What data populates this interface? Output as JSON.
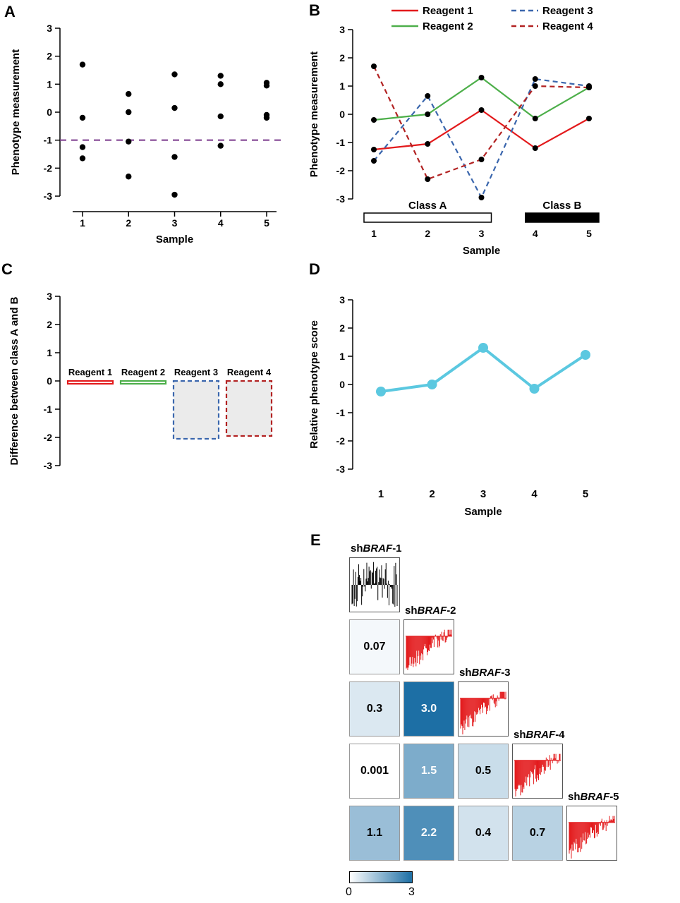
{
  "panels": {
    "a": {
      "letter": "A"
    },
    "b": {
      "letter": "B"
    },
    "c": {
      "letter": "C"
    },
    "d": {
      "letter": "D"
    },
    "e": {
      "letter": "E",
      "colorbar_min": "0",
      "colorbar_max": "3"
    }
  },
  "chart_data": [
    {
      "panel": "A",
      "type": "scatter",
      "xlabel": "Sample",
      "ylabel": "Phenotype measurement",
      "x": [
        1,
        2,
        3,
        4,
        5
      ],
      "points_by_sample": [
        [
          1.7,
          -0.2,
          -1.25,
          -1.65
        ],
        [
          0.65,
          0.0,
          -1.05,
          -2.3
        ],
        [
          1.35,
          0.15,
          -1.6,
          -2.95
        ],
        [
          1.3,
          1.0,
          -0.15,
          -1.2
        ],
        [
          1.05,
          0.95,
          -0.1,
          -0.2
        ]
      ],
      "threshold_line": {
        "y": -1,
        "color": "#7a378b",
        "style": "dashed"
      },
      "ylim": [
        -3,
        3
      ],
      "yticks": [
        -3,
        -2,
        -1,
        0,
        1,
        2,
        3
      ],
      "point_color": "#000000"
    },
    {
      "panel": "B",
      "type": "line",
      "xlabel": "Sample",
      "ylabel": "Phenotype measurement",
      "categories": [
        1,
        2,
        3,
        4,
        5
      ],
      "series": [
        {
          "name": "Reagent 1",
          "color": "#e31a1c",
          "dashed": false,
          "values": [
            -1.25,
            -1.05,
            0.15,
            -1.2,
            -0.15
          ]
        },
        {
          "name": "Reagent 2",
          "color": "#4daf4a",
          "dashed": false,
          "values": [
            -0.2,
            0.0,
            1.3,
            -0.15,
            0.95
          ]
        },
        {
          "name": "Reagent 3",
          "color": "#3a66ad",
          "dashed": true,
          "values": [
            -1.65,
            0.65,
            -2.95,
            1.25,
            1.0
          ]
        },
        {
          "name": "Reagent 4",
          "color": "#b22222",
          "dashed": true,
          "values": [
            1.7,
            -2.3,
            -1.6,
            1.0,
            0.95
          ]
        }
      ],
      "classes": [
        {
          "label": "Class A",
          "samples": [
            1,
            3
          ],
          "fill": "#ffffff"
        },
        {
          "label": "Class B",
          "samples": [
            4,
            5
          ],
          "fill": "#000000"
        }
      ],
      "ylim": [
        -3,
        3
      ],
      "yticks": [
        -3,
        -2,
        -1,
        0,
        1,
        2,
        3
      ],
      "marker_color": "#000000"
    },
    {
      "panel": "C",
      "type": "bar",
      "ylabel": "Difference between class A and B",
      "categories": [
        "Reagent 1",
        "Reagent 2",
        "Reagent 3",
        "Reagent 4"
      ],
      "values": [
        -0.1,
        -0.1,
        -2.05,
        -1.95
      ],
      "styles": [
        {
          "stroke": "#e31a1c",
          "dashed": false,
          "fill": "#ffffff"
        },
        {
          "stroke": "#4daf4a",
          "dashed": false,
          "fill": "#ffffff"
        },
        {
          "stroke": "#3a66ad",
          "dashed": true,
          "fill": "#ebebeb"
        },
        {
          "stroke": "#b22222",
          "dashed": true,
          "fill": "#ebebeb"
        }
      ],
      "ylim": [
        -3,
        3
      ],
      "yticks": [
        -3,
        -2,
        -1,
        0,
        1,
        2,
        3
      ]
    },
    {
      "panel": "D",
      "type": "line",
      "xlabel": "Sample",
      "ylabel": "Relative phenotype score",
      "categories": [
        1,
        2,
        3,
        4,
        5
      ],
      "series": [
        {
          "name": "Relative phenotype score",
          "color": "#5bc8e0",
          "dashed": false,
          "values": [
            -0.25,
            0.0,
            1.3,
            -0.15,
            1.05
          ]
        }
      ],
      "ylim": [
        -3,
        3
      ],
      "yticks": [
        -3,
        -2,
        -1,
        0,
        1,
        2,
        3
      ]
    },
    {
      "panel": "E",
      "type": "heatmap",
      "reagents": [
        {
          "pre": "sh",
          "gene": "BRAF",
          "suffix": "-1",
          "plot_color": "#000000",
          "plot_style": "noise",
          "seed": 9
        },
        {
          "pre": "sh",
          "gene": "BRAF",
          "suffix": "-2",
          "plot_color": "#e31a1c",
          "plot_style": "ramp",
          "seed": 21
        },
        {
          "pre": "sh",
          "gene": "BRAF",
          "suffix": "-3",
          "plot_color": "#e31a1c",
          "plot_style": "ramp",
          "seed": 33
        },
        {
          "pre": "sh",
          "gene": "BRAF",
          "suffix": "-4",
          "plot_color": "#e31a1c",
          "plot_style": "ramp",
          "seed": 47
        },
        {
          "pre": "sh",
          "gene": "BRAF",
          "suffix": "-5",
          "plot_color": "#e31a1c",
          "plot_style": "ramp",
          "seed": 58
        }
      ],
      "values": [
        [
          0.07
        ],
        [
          0.3,
          3.0
        ],
        [
          0.001,
          1.5,
          0.5
        ],
        [
          1.1,
          2.2,
          0.4,
          0.7
        ]
      ],
      "displays": [
        [
          "0.07"
        ],
        [
          "0.3",
          "3.0"
        ],
        [
          "0.001",
          "1.5",
          "0.5"
        ],
        [
          "1.1",
          "2.2",
          "0.4",
          "0.7"
        ]
      ],
      "scale": {
        "min": 0,
        "max": 3,
        "low": "#ffffff",
        "high": "#1d6fa5"
      }
    }
  ]
}
